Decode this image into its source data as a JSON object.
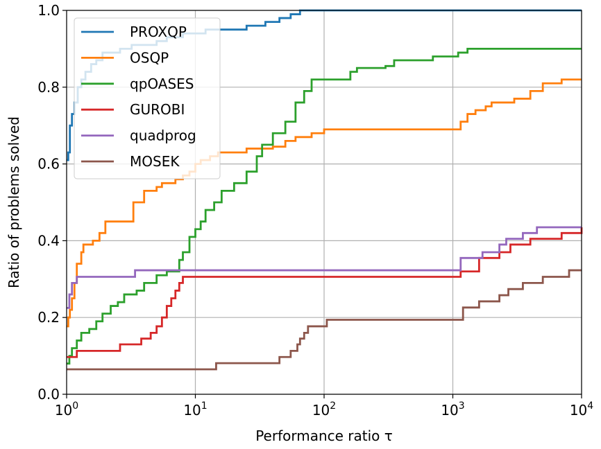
{
  "chart_data": {
    "type": "line",
    "subtype": "step",
    "xlabel": "Performance ratio τ",
    "ylabel": "Ratio of problems solved",
    "xscale": "log",
    "xlim": [
      1,
      10000
    ],
    "ylim": [
      0,
      1
    ],
    "grid": true,
    "legend_position": "top-left",
    "x_ticks": [
      {
        "value": 1,
        "base": "10",
        "exp": "0"
      },
      {
        "value": 10,
        "base": "10",
        "exp": "1"
      },
      {
        "value": 100,
        "base": "10",
        "exp": "2"
      },
      {
        "value": 1000,
        "base": "10",
        "exp": "3"
      },
      {
        "value": 10000,
        "base": "10",
        "exp": "4"
      }
    ],
    "y_ticks": [
      {
        "value": 0,
        "label": "0.0"
      },
      {
        "value": 0.2,
        "label": "0.2"
      },
      {
        "value": 0.4,
        "label": "0.4"
      },
      {
        "value": 0.6,
        "label": "0.6"
      },
      {
        "value": 0.8,
        "label": "0.8"
      },
      {
        "value": 1,
        "label": "1.0"
      }
    ],
    "series": [
      {
        "name": "PROXQP",
        "color": "#1f77b4",
        "points": [
          [
            1,
            0.61
          ],
          [
            1.03,
            0.63
          ],
          [
            1.06,
            0.7
          ],
          [
            1.1,
            0.73
          ],
          [
            1.15,
            0.76
          ],
          [
            1.22,
            0.8
          ],
          [
            1.3,
            0.82
          ],
          [
            1.4,
            0.84
          ],
          [
            1.55,
            0.86
          ],
          [
            1.7,
            0.87
          ],
          [
            1.9,
            0.89
          ],
          [
            2.2,
            0.89
          ],
          [
            2.6,
            0.9
          ],
          [
            3.2,
            0.91
          ],
          [
            4,
            0.91
          ],
          [
            5,
            0.92
          ],
          [
            6,
            0.93
          ],
          [
            8,
            0.94
          ],
          [
            10,
            0.94
          ],
          [
            12,
            0.95
          ],
          [
            16,
            0.95
          ],
          [
            25,
            0.96
          ],
          [
            35,
            0.97
          ],
          [
            45,
            0.98
          ],
          [
            55,
            0.99
          ],
          [
            65,
            1
          ],
          [
            10000,
            1
          ]
        ]
      },
      {
        "name": "OSQP",
        "color": "#ff7f0e",
        "points": [
          [
            1,
            0.177
          ],
          [
            1.03,
            0.2
          ],
          [
            1.06,
            0.22
          ],
          [
            1.1,
            0.25
          ],
          [
            1.15,
            0.29
          ],
          [
            1.2,
            0.34
          ],
          [
            1.3,
            0.37
          ],
          [
            1.35,
            0.39
          ],
          [
            1.5,
            0.39
          ],
          [
            1.6,
            0.4
          ],
          [
            1.8,
            0.42
          ],
          [
            2,
            0.45
          ],
          [
            2.3,
            0.45
          ],
          [
            3.3,
            0.5
          ],
          [
            3.6,
            0.5
          ],
          [
            4,
            0.53
          ],
          [
            4.5,
            0.53
          ],
          [
            5,
            0.54
          ],
          [
            5.5,
            0.55
          ],
          [
            6,
            0.55
          ],
          [
            7,
            0.56
          ],
          [
            8,
            0.57
          ],
          [
            9,
            0.58
          ],
          [
            10,
            0.6
          ],
          [
            11,
            0.61
          ],
          [
            13,
            0.62
          ],
          [
            15,
            0.63
          ],
          [
            20,
            0.63
          ],
          [
            25,
            0.64
          ],
          [
            35,
            0.64
          ],
          [
            40,
            0.645
          ],
          [
            50,
            0.66
          ],
          [
            60,
            0.67
          ],
          [
            80,
            0.68
          ],
          [
            100,
            0.69
          ],
          [
            150,
            0.69
          ],
          [
            1100,
            0.69
          ],
          [
            1150,
            0.71
          ],
          [
            1300,
            0.73
          ],
          [
            1500,
            0.74
          ],
          [
            1800,
            0.75
          ],
          [
            2000,
            0.76
          ],
          [
            2500,
            0.76
          ],
          [
            3000,
            0.77
          ],
          [
            4000,
            0.79
          ],
          [
            5000,
            0.81
          ],
          [
            6000,
            0.81
          ],
          [
            7000,
            0.82
          ],
          [
            10000,
            0.82
          ]
        ]
      },
      {
        "name": "qpOASES",
        "color": "#2ca02c",
        "points": [
          [
            1,
            0.08
          ],
          [
            1.05,
            0.1
          ],
          [
            1.1,
            0.12
          ],
          [
            1.2,
            0.14
          ],
          [
            1.3,
            0.16
          ],
          [
            1.5,
            0.17
          ],
          [
            1.7,
            0.19
          ],
          [
            1.9,
            0.21
          ],
          [
            2.2,
            0.23
          ],
          [
            2.5,
            0.24
          ],
          [
            2.8,
            0.26
          ],
          [
            3.5,
            0.27
          ],
          [
            4,
            0.29
          ],
          [
            5,
            0.31
          ],
          [
            6,
            0.32
          ],
          [
            7,
            0.32
          ],
          [
            7.5,
            0.35
          ],
          [
            8,
            0.37
          ],
          [
            9,
            0.41
          ],
          [
            10,
            0.43
          ],
          [
            11,
            0.45
          ],
          [
            12,
            0.48
          ],
          [
            14,
            0.5
          ],
          [
            16,
            0.53
          ],
          [
            20,
            0.55
          ],
          [
            25,
            0.58
          ],
          [
            30,
            0.62
          ],
          [
            33,
            0.65
          ],
          [
            40,
            0.68
          ],
          [
            50,
            0.71
          ],
          [
            60,
            0.76
          ],
          [
            70,
            0.79
          ],
          [
            80,
            0.82
          ],
          [
            100,
            0.82
          ],
          [
            160,
            0.84
          ],
          [
            180,
            0.85
          ],
          [
            300,
            0.855
          ],
          [
            350,
            0.87
          ],
          [
            600,
            0.87
          ],
          [
            700,
            0.88
          ],
          [
            1100,
            0.89
          ],
          [
            1300,
            0.9
          ],
          [
            10000,
            0.9
          ]
        ]
      },
      {
        "name": "GUROBI",
        "color": "#d62728",
        "points": [
          [
            1,
            0.097
          ],
          [
            1.2,
            0.113
          ],
          [
            2.4,
            0.113
          ],
          [
            2.6,
            0.13
          ],
          [
            3.5,
            0.13
          ],
          [
            3.8,
            0.145
          ],
          [
            4.5,
            0.16
          ],
          [
            5,
            0.177
          ],
          [
            5.5,
            0.2
          ],
          [
            6,
            0.23
          ],
          [
            6.5,
            0.25
          ],
          [
            7,
            0.27
          ],
          [
            7.5,
            0.29
          ],
          [
            8,
            0.306
          ],
          [
            1100,
            0.306
          ],
          [
            1150,
            0.32
          ],
          [
            1600,
            0.355
          ],
          [
            2300,
            0.37
          ],
          [
            2800,
            0.39
          ],
          [
            3500,
            0.39
          ],
          [
            4000,
            0.405
          ],
          [
            7000,
            0.42
          ],
          [
            10000,
            0.435
          ]
        ]
      },
      {
        "name": "quadprog",
        "color": "#9467bd",
        "points": [
          [
            1,
            0.225
          ],
          [
            1.05,
            0.26
          ],
          [
            1.1,
            0.29
          ],
          [
            1.2,
            0.306
          ],
          [
            3.3,
            0.306
          ],
          [
            3.4,
            0.323
          ],
          [
            1100,
            0.323
          ],
          [
            1150,
            0.355
          ],
          [
            1700,
            0.37
          ],
          [
            2300,
            0.39
          ],
          [
            2600,
            0.405
          ],
          [
            3500,
            0.42
          ],
          [
            4500,
            0.435
          ],
          [
            10000,
            0.435
          ]
        ]
      },
      {
        "name": "MOSEK",
        "color": "#8c564b",
        "points": [
          [
            1,
            0.065
          ],
          [
            14,
            0.065
          ],
          [
            14.5,
            0.081
          ],
          [
            35,
            0.081
          ],
          [
            45,
            0.097
          ],
          [
            55,
            0.113
          ],
          [
            62,
            0.13
          ],
          [
            65,
            0.145
          ],
          [
            70,
            0.16
          ],
          [
            75,
            0.177
          ],
          [
            100,
            0.177
          ],
          [
            105,
            0.194
          ],
          [
            1100,
            0.194
          ],
          [
            1200,
            0.226
          ],
          [
            1600,
            0.242
          ],
          [
            2300,
            0.258
          ],
          [
            2700,
            0.274
          ],
          [
            3500,
            0.29
          ],
          [
            5000,
            0.306
          ],
          [
            8000,
            0.323
          ],
          [
            10000,
            0.323
          ]
        ]
      }
    ]
  }
}
